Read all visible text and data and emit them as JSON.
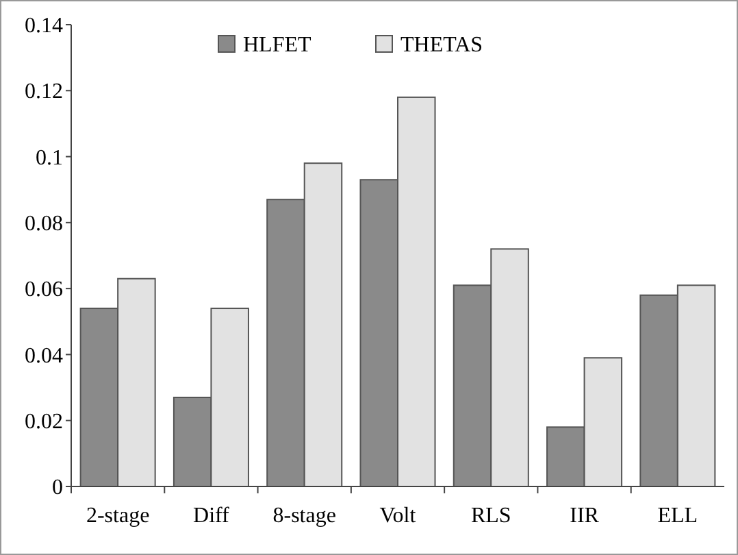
{
  "chart_data": {
    "type": "bar",
    "categories": [
      "2-stage",
      "Diff",
      "8-stage",
      "Volt",
      "RLS",
      "IIR",
      "ELL"
    ],
    "series": [
      {
        "name": "HLFET",
        "color": "#8a8a8a",
        "values": [
          0.054,
          0.027,
          0.087,
          0.093,
          0.061,
          0.018,
          0.058
        ]
      },
      {
        "name": "THETAS",
        "color": "#e2e2e2",
        "values": [
          0.063,
          0.054,
          0.098,
          0.118,
          0.072,
          0.039,
          0.061
        ]
      }
    ],
    "ylim": [
      0,
      0.14
    ],
    "yticks": [
      0,
      0.02,
      0.04,
      0.06,
      0.08,
      0.1,
      0.12,
      0.14
    ],
    "grid": false,
    "legend": "top"
  }
}
